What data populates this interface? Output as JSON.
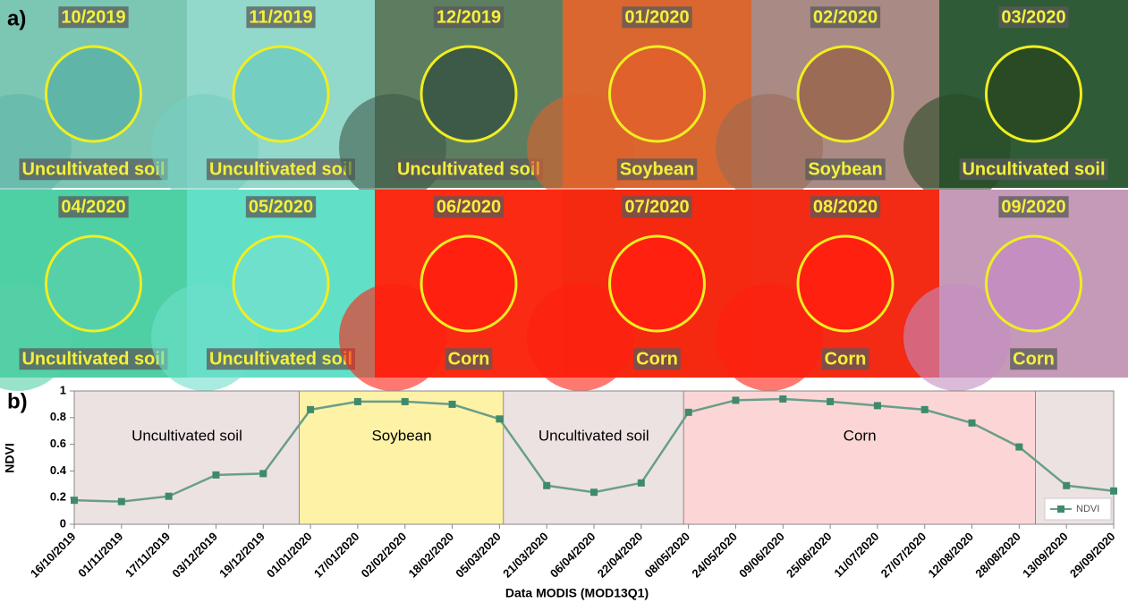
{
  "panel_a": {
    "label": "a)",
    "tiles": [
      {
        "date": "10/2019",
        "class": "Uncultivated soil"
      },
      {
        "date": "11/2019",
        "class": "Uncultivated soil"
      },
      {
        "date": "12/2019",
        "class": "Uncultivated soil"
      },
      {
        "date": "01/2020",
        "class": "Soybean"
      },
      {
        "date": "02/2020",
        "class": "Soybean"
      },
      {
        "date": "03/2020",
        "class": "Uncultivated soil"
      },
      {
        "date": "04/2020",
        "class": "Uncultivated soil"
      },
      {
        "date": "05/2020",
        "class": "Uncultivated soil"
      },
      {
        "date": "06/2020",
        "class": "Corn"
      },
      {
        "date": "07/2020",
        "class": "Corn"
      },
      {
        "date": "08/2020",
        "class": "Corn"
      },
      {
        "date": "09/2020",
        "class": "Corn"
      }
    ]
  },
  "chart_data": {
    "type": "line",
    "panel_label": "b)",
    "x_label": "Data MODIS  (MOD13Q1)",
    "y_label": "NDVI",
    "categories": [
      "16/10/2019",
      "01/11/2019",
      "17/11/2019",
      "03/12/2019",
      "19/12/2019",
      "01/01/2020",
      "17/01/2020",
      "02/02/2020",
      "18/02/2020",
      "05/03/2020",
      "21/03/2020",
      "06/04/2020",
      "22/04/2020",
      "08/05/2020",
      "24/05/2020",
      "09/06/2020",
      "25/06/2020",
      "11/07/2020",
      "27/07/2020",
      "12/08/2020",
      "28/08/2020",
      "13/09/2020",
      "29/09/2020"
    ],
    "series": [
      {
        "name": "NDVI",
        "color": "#6a9e8a",
        "values": [
          0.18,
          0.17,
          0.21,
          0.37,
          0.38,
          0.86,
          0.92,
          0.92,
          0.9,
          0.79,
          0.29,
          0.24,
          0.31,
          0.84,
          0.93,
          0.94,
          0.92,
          0.89,
          0.86,
          0.76,
          0.58,
          0.29,
          0.25
        ]
      }
    ],
    "ylim": [
      0,
      1
    ],
    "yticks": [
      0,
      0.2,
      0.4,
      0.6,
      0.8,
      1
    ],
    "grid": false,
    "legend": "lower right",
    "annotations": [
      "Uncultivated soil",
      "Soybean",
      "Uncultivated soil",
      "Corn"
    ]
  }
}
